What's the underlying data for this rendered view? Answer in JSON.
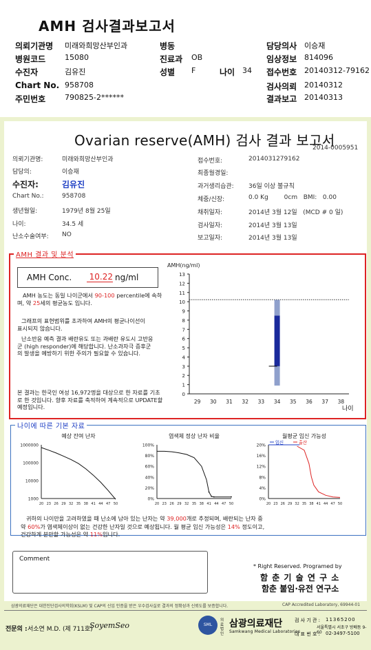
{
  "report_header": {
    "title": "AMH 검사결과보고서",
    "rows": [
      [
        {
          "label": "의뢰기관명",
          "value": "미래와희망산부인과"
        },
        {
          "label": "병동",
          "value": ""
        },
        {
          "label": "담당의사",
          "value": "이승재"
        }
      ],
      [
        {
          "label": "병원코드",
          "value": "15080"
        },
        {
          "label": "진료과",
          "value": "OB"
        },
        {
          "label": "임상정보",
          "value": "814096"
        }
      ],
      [
        {
          "label": "수진자",
          "value": "김유진"
        },
        {
          "label": "성별",
          "value": "F"
        },
        {
          "label": "나이",
          "value": "34"
        },
        {
          "label": "접수번호",
          "value": "20140312-79162"
        }
      ],
      [
        {
          "label": "Chart No.",
          "value": "958708"
        },
        {
          "label": "검사의뢰",
          "value": "20140312"
        }
      ],
      [
        {
          "label": "주민번호",
          "value": "790825-2******"
        },
        {
          "label": "결과보고",
          "value": "20140313"
        }
      ]
    ]
  },
  "report": {
    "title": "Ovarian reserve(AMH) 검사 결과 보고서",
    "doc_number": "2014-0005951",
    "left_info": [
      {
        "label": "의뢰기관명:",
        "value": "미래와희망산부인과"
      },
      {
        "label": "담당의:",
        "value": "이승재"
      },
      {
        "label": "수진자:",
        "value": "김유진"
      },
      {
        "label": "Chart No.:",
        "value": "958708"
      },
      {
        "label": "생년월일:",
        "value": "1979년 8월 25일"
      },
      {
        "label": "나이:",
        "value": "34.5 세"
      },
      {
        "label": "난소수술여부:",
        "value": "NO"
      }
    ],
    "right_info": [
      {
        "label": "접수번호:",
        "value": "2014031279162"
      },
      {
        "label": "최종월경일:",
        "value": ""
      },
      {
        "label": "과거생리습관:",
        "value": "36일 이상 불규칙"
      },
      {
        "label": "체중/신장:",
        "value": "0.0 Kg        0cm   BMI:   0.00"
      },
      {
        "label": "채취일자:",
        "value": "2014년 3월 12일   (MCD # 0 일)"
      },
      {
        "label": "검사일자:",
        "value": "2014년 3월 13일"
      },
      {
        "label": "보고일자:",
        "value": "2014년 3월 13일"
      }
    ]
  },
  "amh_section": {
    "label": "AMH 결과 및 분석",
    "conc_label": "AMH Conc.",
    "conc_value": "10.22",
    "conc_unit": "ng/ml",
    "analysis_p1_a": "AMH 농도는 동일 나이군에서",
    "analysis_p1_pct": "90-100",
    "analysis_p1_b": "percentile에 속하며, 약",
    "analysis_p1_age": "25",
    "analysis_p1_c": "세의 평균농도 입니다.",
    "analysis_p2": "그래프의 표현범위를 초과하여 AMH의 평균나이선이 표시되지 않습니다.",
    "analysis_p3": "난소반응 예측 결과 배란유도 또는 과배란 유도시 고반응군 (high responder)에 해당합니다. 난소과자극 증후군의 발생을 예방하기 위한 주의가 필요할 수 있습니다.",
    "analysis_p4": "본 결과는 한국인 여성 16,972명을 대상으로 한 자료를 기초로 한 것입니다. 향후 자료를 축적하여 계속적으로 UPDATE할 예정입니다."
  },
  "chart_data": [
    {
      "type": "bar",
      "title": "",
      "ylabel": "AMH(ng/ml)",
      "xlabel": "나이",
      "x_ticks": [
        29,
        30,
        31,
        32,
        33,
        34,
        35,
        36,
        37,
        38
      ],
      "ylim": [
        0,
        13
      ],
      "y_ticks": [
        0,
        1,
        2,
        3,
        4,
        5,
        6,
        7,
        8,
        9,
        10,
        11,
        12,
        13
      ],
      "reference_line": 10.22,
      "range_bar": {
        "x": 34,
        "segments": [
          {
            "from": 0.9,
            "to": 3.0,
            "color": "#8fa0cc"
          },
          {
            "from": 3.0,
            "to": 8.5,
            "color": "#1a2a9c"
          },
          {
            "from": 8.5,
            "to": 10.2,
            "color": "#8fa0cc"
          }
        ]
      },
      "marker": {
        "x": 34,
        "y": 3.0
      }
    },
    {
      "type": "line",
      "title": "예상 잔여 난자",
      "y_scale": "log",
      "y_ticks": [
        1000,
        10000,
        100000,
        1000000
      ],
      "x_ticks": [
        20,
        23,
        26,
        29,
        32,
        35,
        38,
        41,
        44,
        47,
        50
      ],
      "series": [
        {
          "x": [
            20,
            23,
            26,
            29,
            32,
            35,
            38,
            41,
            44,
            47,
            50
          ],
          "y": [
            700000,
            500000,
            350000,
            230000,
            150000,
            90000,
            45000,
            20000,
            8000,
            2800,
            900
          ]
        }
      ]
    },
    {
      "type": "line",
      "title": "염색체 정상 난자 비율",
      "y_ticks": [
        "0%",
        "20%",
        "40%",
        "60%",
        "80%",
        "100%"
      ],
      "x_ticks": [
        20,
        23,
        26,
        29,
        32,
        35,
        38,
        41,
        44,
        47,
        50
      ],
      "series": [
        {
          "x": [
            20,
            23,
            26,
            29,
            32,
            35,
            38,
            40,
            41,
            42,
            43,
            50
          ],
          "y": [
            88,
            88,
            87,
            85,
            82,
            76,
            60,
            35,
            12,
            4,
            3,
            3
          ]
        }
      ]
    },
    {
      "type": "line",
      "title": "월평균 임신 가능성",
      "y_ticks": [
        "0%",
        "4%",
        "8%",
        "12%",
        "16%",
        "20%"
      ],
      "x_ticks": [
        20,
        23,
        26,
        29,
        32,
        35,
        38,
        41,
        44,
        47,
        50
      ],
      "series": [
        {
          "name": "임신",
          "color": "#1e3fc4",
          "x": [
            20,
            23,
            26,
            29,
            32,
            33
          ],
          "y": [
            20,
            20,
            20,
            20,
            20,
            20
          ]
        },
        {
          "name": "출산",
          "color": "#d22",
          "x": [
            32,
            35,
            37,
            38,
            39,
            41,
            44,
            47,
            50
          ],
          "y": [
            19.5,
            18,
            13,
            8,
            5,
            2.5,
            1.2,
            0.6,
            0.4
          ]
        }
      ]
    }
  ],
  "age_section": {
    "label": "나이에 따른 기본 자료",
    "sum_a": "귀하의 나이만을 고려하였을 때 난소에 남아 있는 난자는 약",
    "sum_eggs": "39,000",
    "sum_b": "개로 추정되며, 배란되는 난자 중",
    "sum_c": "약",
    "sum_pct": "60%",
    "sum_d": "가 염색체이상이 없는 건강한 난자일 것으로 예상됩니다. 월 평균 임신 가능성은",
    "sum_preg": "14%",
    "sum_e": "정도이고,",
    "sum_f": "건강하게 분만할 가능성은 약",
    "sum_birth": "11%",
    "sum_g": "입니다."
  },
  "comment": {
    "label": "Comment"
  },
  "rights": {
    "line1": "* Right Reserved. Programed by",
    "line2": "함 춘 기 술 연 구 소",
    "line3": "함춘 불임·유전 연구소"
  },
  "footer": {
    "certification": "삼광의료재단은 대한진단검사의학회(KSLM) 및 CAP의 신임 인증을 받은 우수검사실로 결과의 정확성과 신뢰도를 보증합니다.",
    "cap": "CAP Accredited Laboratory,  69944-01",
    "specialist_label": "전문의 :",
    "specialist": "서소연 M.D. (제 711호)",
    "signature": "SoyemSeo",
    "logo_small": "SML",
    "foundation_prefix": "의료\n법인",
    "foundation_name": "삼광의료재단",
    "foundation_en": "Samkwang Medical Laboratories",
    "address_label": "검 사 기 관 :",
    "address_code": "11365200",
    "address1": "서울특별시 서초구 방배동 9-60",
    "phone_label": "대 표 번 호 :",
    "phone": "02-3497-5100"
  }
}
